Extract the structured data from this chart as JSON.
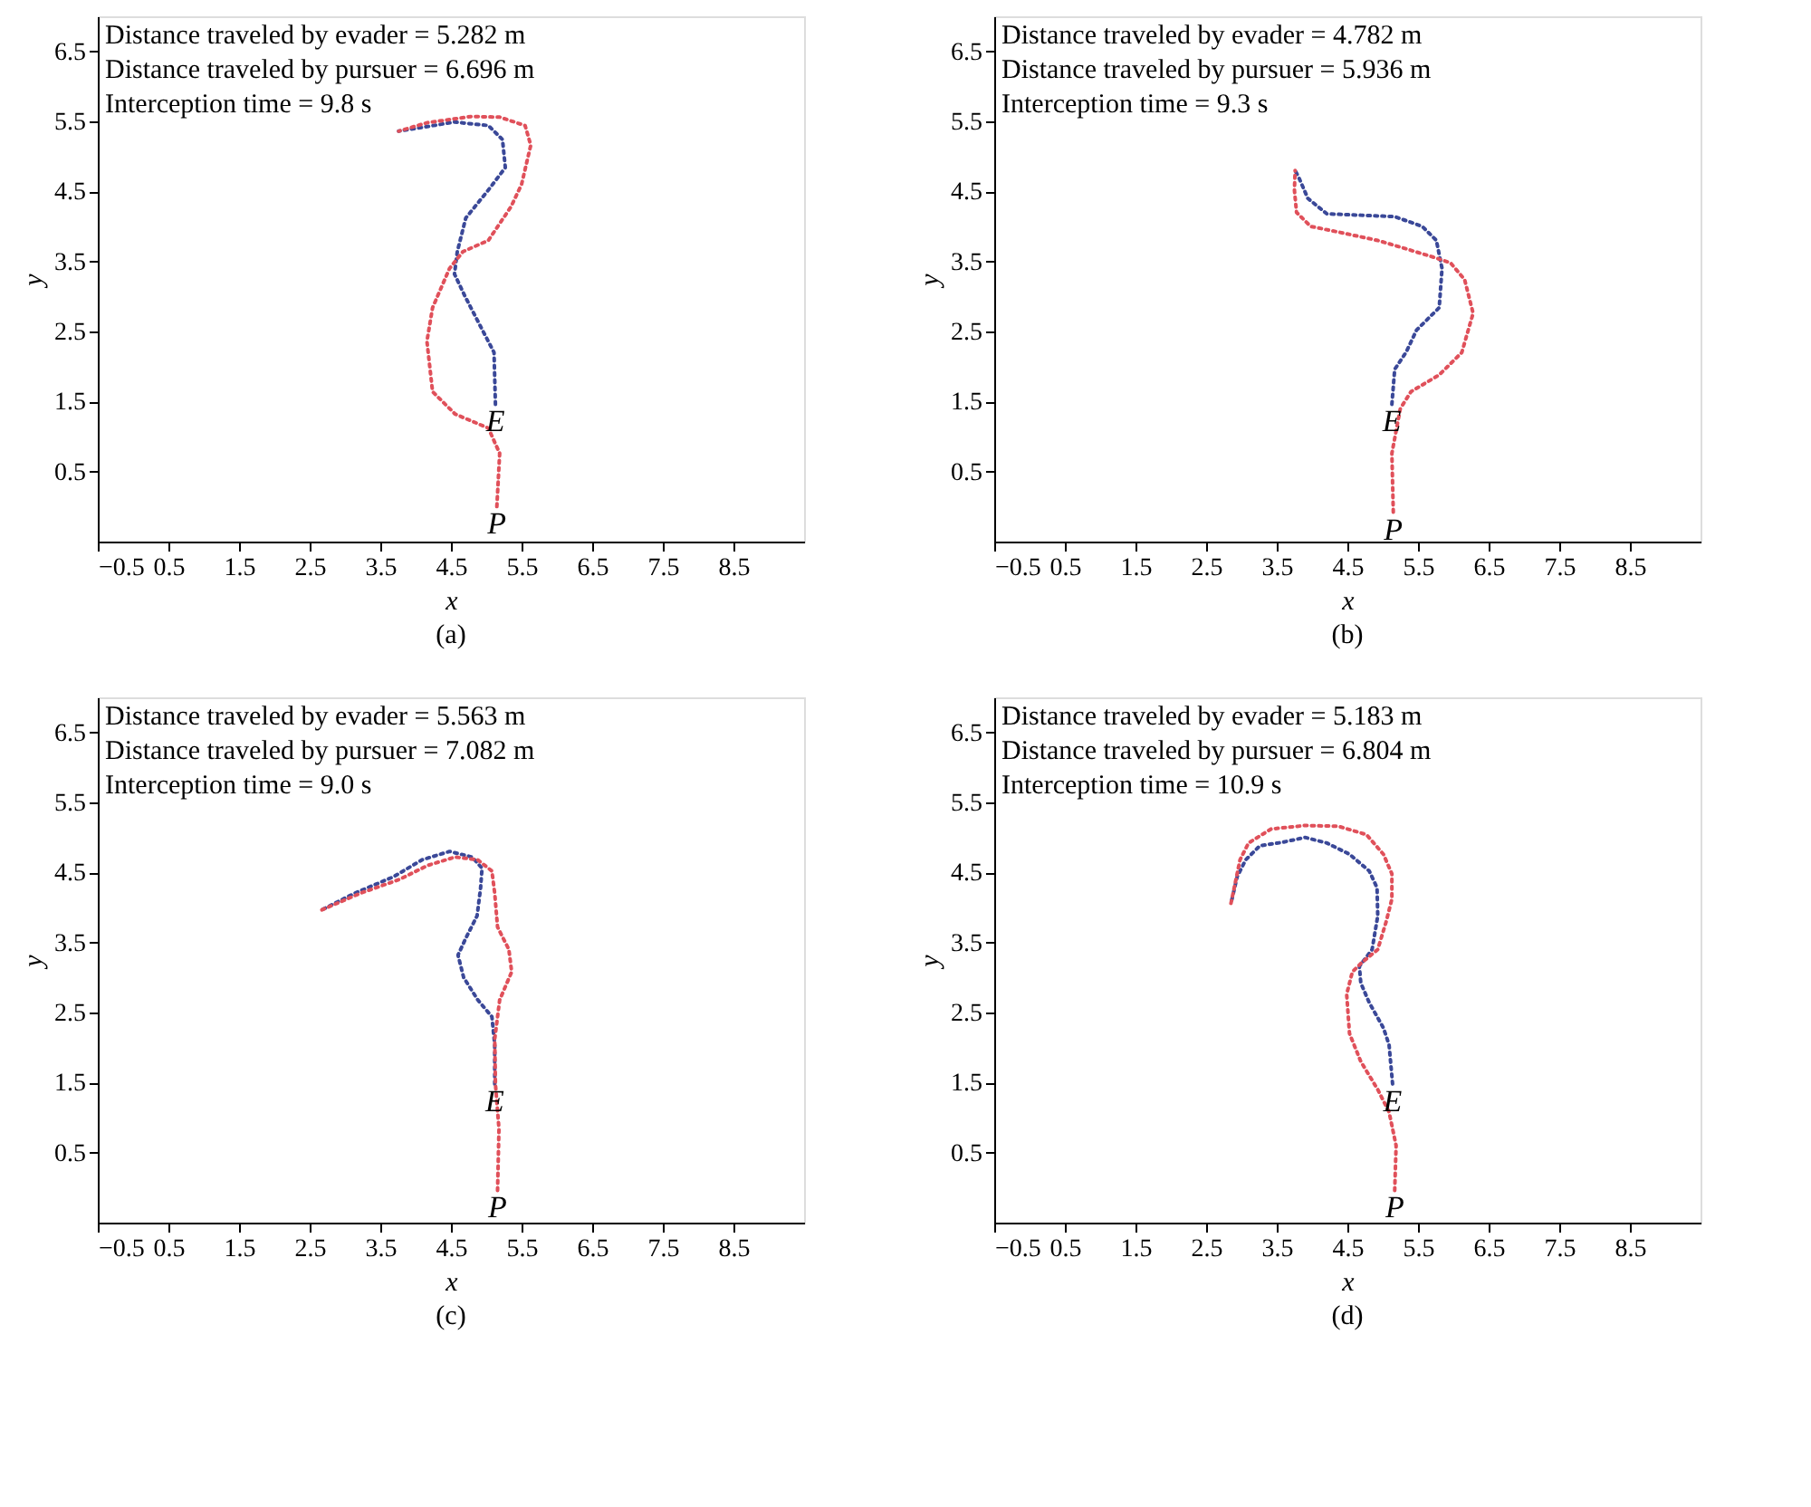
{
  "chart_data": [
    {
      "type": "line",
      "title": "(a)",
      "xlabel": "x",
      "ylabel": "y",
      "xlim": [
        -0.5,
        9.5
      ],
      "ylim": [
        -0.5,
        7
      ],
      "xticks": [
        -0.5,
        0.5,
        1.5,
        2.5,
        3.5,
        4.5,
        5.5,
        6.5,
        7.5,
        8.5
      ],
      "yticks": [
        0.5,
        1.5,
        2.5,
        3.5,
        4.5,
        5.5,
        6.5
      ],
      "grid": false,
      "line_style": "dotted",
      "marker": "none",
      "series": [
        {
          "color": "#3a4898",
          "x": [
            5.13,
            5.11,
            4.7,
            4.55,
            4.59,
            4.71,
            5.03,
            5.27,
            5.23,
            5.03,
            4.55,
            3.76
          ],
          "values": [
            1.46,
            2.2,
            3.0,
            3.32,
            3.64,
            4.12,
            4.52,
            4.84,
            5.24,
            5.44,
            5.49,
            5.36
          ]
        },
        {
          "color": "#e0505a",
          "x": [
            5.15,
            5.19,
            5.03,
            4.56,
            4.24,
            4.16,
            4.24,
            4.48,
            4.67,
            5.03,
            5.35,
            5.5,
            5.63,
            5.55,
            5.19,
            4.79,
            4.16,
            3.76
          ],
          "values": [
            0.0,
            0.76,
            1.12,
            1.32,
            1.64,
            2.36,
            2.84,
            3.4,
            3.64,
            3.8,
            4.28,
            4.6,
            5.16,
            5.44,
            5.56,
            5.57,
            5.48,
            5.36
          ]
        }
      ],
      "annotations": [
        "Distance traveled by evader = 5.282 m",
        "Distance traveled by pursuer = 6.696 m",
        "Interception time = 9.8 s",
        {
          "text": "E",
          "x": 5.13,
          "y": 1.46
        },
        {
          "text": "P",
          "x": 5.15,
          "y": 0.0
        }
      ]
    },
    {
      "type": "line",
      "title": "(b)",
      "xlabel": "x",
      "ylabel": "y",
      "xlim": [
        -0.5,
        9.5
      ],
      "ylim": [
        -0.5,
        7
      ],
      "xticks": [
        -0.5,
        0.5,
        1.5,
        2.5,
        3.5,
        4.5,
        5.5,
        6.5,
        7.5,
        8.5
      ],
      "yticks": [
        0.5,
        1.5,
        2.5,
        3.5,
        4.5,
        5.5,
        6.5
      ],
      "grid": false,
      "line_style": "dotted",
      "marker": "none",
      "series": [
        {
          "color": "#3a4898",
          "x": [
            5.13,
            5.17,
            5.33,
            5.48,
            5.8,
            5.84,
            5.76,
            5.56,
            5.17,
            4.69,
            4.21,
            3.94,
            3.82,
            3.76
          ],
          "values": [
            1.46,
            1.96,
            2.2,
            2.52,
            2.84,
            3.4,
            3.8,
            4.0,
            4.14,
            4.16,
            4.18,
            4.4,
            4.68,
            4.8
          ]
        },
        {
          "color": "#e0505a",
          "x": [
            5.15,
            5.13,
            5.25,
            5.4,
            5.8,
            6.12,
            6.28,
            6.16,
            5.96,
            5.72,
            5.33,
            4.93,
            4.37,
            3.98,
            3.78,
            3.75,
            3.76
          ],
          "values": [
            -0.08,
            0.76,
            1.4,
            1.64,
            1.88,
            2.2,
            2.76,
            3.24,
            3.48,
            3.56,
            3.68,
            3.8,
            3.92,
            4.0,
            4.2,
            4.52,
            4.8
          ]
        }
      ],
      "annotations": [
        "Distance traveled by evader = 4.782 m",
        "Distance traveled by pursuer = 5.936 m",
        "Interception time = 9.3 s",
        {
          "text": "E",
          "x": 5.13,
          "y": 1.46
        },
        {
          "text": "P",
          "x": 5.15,
          "y": -0.08
        }
      ]
    },
    {
      "type": "line",
      "title": "(c)",
      "xlabel": "x",
      "ylabel": "y",
      "xlim": [
        -0.5,
        9.5
      ],
      "ylim": [
        -0.5,
        7
      ],
      "xticks": [
        -0.5,
        0.5,
        1.5,
        2.5,
        3.5,
        4.5,
        5.5,
        6.5,
        7.5,
        8.5
      ],
      "yticks": [
        0.5,
        1.5,
        2.5,
        3.5,
        4.5,
        5.5,
        6.5
      ],
      "grid": false,
      "line_style": "dotted",
      "marker": "none",
      "series": [
        {
          "color": "#3a4898",
          "x": [
            5.12,
            5.12,
            5.08,
            4.88,
            4.68,
            4.6,
            4.71,
            4.87,
            4.92,
            4.94,
            4.8,
            4.48,
            4.09,
            3.69,
            3.13,
            2.66
          ],
          "values": [
            1.48,
            2.04,
            2.44,
            2.68,
            3.0,
            3.32,
            3.56,
            3.88,
            4.28,
            4.56,
            4.72,
            4.8,
            4.68,
            4.44,
            4.2,
            3.96
          ]
        },
        {
          "color": "#e0505a",
          "x": [
            5.16,
            5.18,
            5.13,
            5.12,
            5.19,
            5.36,
            5.32,
            5.16,
            5.12,
            5.08,
            4.88,
            4.56,
            4.17,
            3.77,
            3.21,
            2.66
          ],
          "values": [
            -0.04,
            0.84,
            1.48,
            2.12,
            2.68,
            3.08,
            3.4,
            3.72,
            4.2,
            4.52,
            4.68,
            4.72,
            4.6,
            4.4,
            4.2,
            3.96
          ]
        }
      ],
      "annotations": [
        "Distance traveled by evader = 5.563 m",
        "Distance traveled by pursuer = 7.082 m",
        "Interception time = 9.0 s",
        {
          "text": "E",
          "x": 5.12,
          "y": 1.48
        },
        {
          "text": "P",
          "x": 5.16,
          "y": -0.04
        }
      ]
    },
    {
      "type": "line",
      "title": "(d)",
      "xlabel": "x",
      "ylabel": "y",
      "xlim": [
        -0.5,
        9.5
      ],
      "ylim": [
        -0.5,
        7
      ],
      "xticks": [
        -0.5,
        0.5,
        1.5,
        2.5,
        3.5,
        4.5,
        5.5,
        6.5,
        7.5,
        8.5
      ],
      "yticks": [
        0.5,
        1.5,
        2.5,
        3.5,
        4.5,
        5.5,
        6.5
      ],
      "grid": false,
      "line_style": "dotted",
      "marker": "none",
      "series": [
        {
          "color": "#3a4898",
          "x": [
            5.14,
            5.09,
            5.01,
            4.81,
            4.69,
            4.67,
            4.85,
            4.93,
            4.92,
            4.81,
            4.53,
            4.21,
            3.9,
            3.58,
            3.26,
            3.06,
            2.94,
            2.85
          ],
          "values": [
            1.48,
            2.04,
            2.28,
            2.64,
            2.92,
            3.16,
            3.4,
            3.88,
            4.28,
            4.52,
            4.76,
            4.92,
            5.0,
            4.93,
            4.88,
            4.68,
            4.44,
            4.05
          ]
        },
        {
          "color": "#e0505a",
          "x": [
            5.17,
            5.19,
            5.09,
            4.93,
            4.69,
            4.53,
            4.49,
            4.57,
            4.69,
            4.93,
            5.05,
            5.13,
            5.13,
            5.01,
            4.77,
            4.37,
            3.9,
            3.42,
            3.1,
            2.98,
            2.85
          ],
          "values": [
            -0.04,
            0.6,
            1.08,
            1.4,
            1.8,
            2.2,
            2.76,
            3.08,
            3.2,
            3.4,
            3.8,
            4.12,
            4.48,
            4.76,
            5.04,
            5.16,
            5.17,
            5.12,
            4.92,
            4.68,
            4.05
          ]
        }
      ],
      "annotations": [
        "Distance traveled by evader = 5.183 m",
        "Distance traveled by pursuer = 6.804 m",
        "Interception time = 10.9 s",
        {
          "text": "E",
          "x": 5.14,
          "y": 1.48
        },
        {
          "text": "P",
          "x": 5.17,
          "y": -0.04
        }
      ]
    }
  ]
}
